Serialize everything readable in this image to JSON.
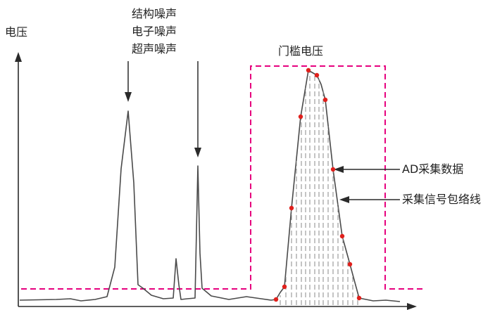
{
  "axes": {
    "y_label": "电压"
  },
  "noise": {
    "lines": [
      "结构噪声",
      "电子噪声",
      "超声噪声"
    ]
  },
  "gate": {
    "label": "门槛电压",
    "color": "#e6007e"
  },
  "callouts": {
    "ad_sample": "AD采集数据",
    "envelope": "采集信号包络线"
  },
  "colors": {
    "signal": "#4a4a4a",
    "sample_point": "#e0201c",
    "axis": "#2a2a2a",
    "sample_line": "#888888"
  }
}
